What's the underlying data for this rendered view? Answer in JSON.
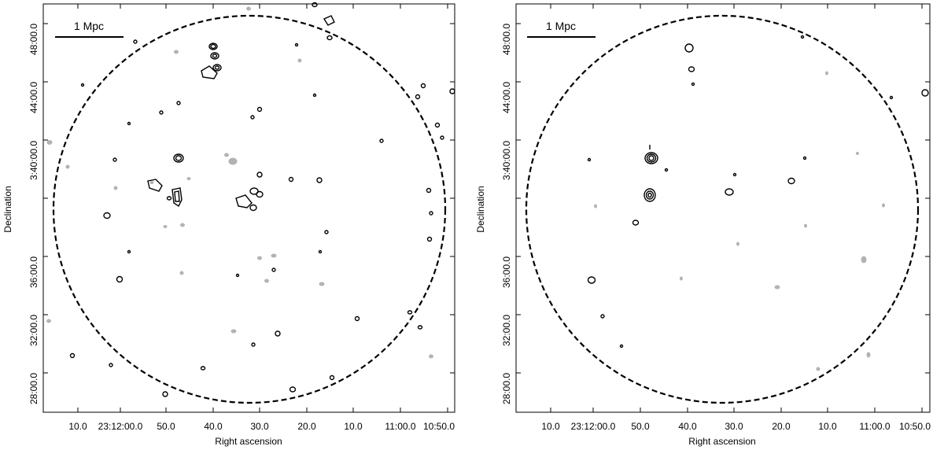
{
  "panels": [
    {
      "id": "left",
      "scale_bar_label": "1 Mpc",
      "xlabel": "Right ascension",
      "ylabel": "Declination",
      "xticks": [
        "10.0",
        "23:12:00.0",
        "50.0",
        "40.0",
        "30.0",
        "20.0",
        "10.0",
        "11:00.0",
        "10:50.0"
      ],
      "yticks": [
        "48:00.0",
        "44:00.0",
        "3:40:00.0",
        "36:00.0",
        "32:00.0",
        "28:00.0"
      ]
    },
    {
      "id": "right",
      "scale_bar_label": "1 Mpc",
      "xlabel": "Right ascension",
      "ylabel": "Declination",
      "xticks": [
        "10.0",
        "23:12:00.0",
        "50.0",
        "40.0",
        "30.0",
        "20.0",
        "10.0",
        "11:00.0",
        "10:50.0"
      ],
      "yticks": [
        "48:00.0",
        "44:00.0",
        "3:40:00.0",
        "36:00.0",
        "32:00.0",
        "28:00.0"
      ]
    }
  ],
  "colors": {
    "contour": "#000000",
    "negative_contour": "#b3b3b3"
  }
}
